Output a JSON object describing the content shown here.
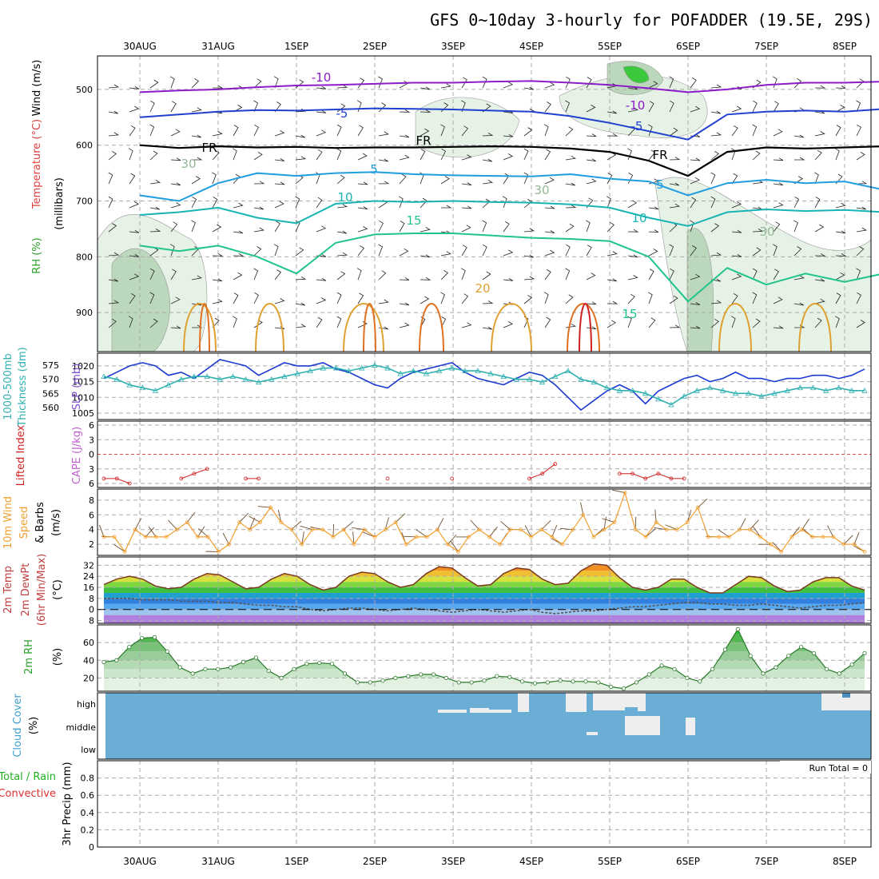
{
  "title": "GFS 0~10day 3-hourly for POFADDER (19.5E, 29S)",
  "dates": [
    "30AUG",
    "31AUG",
    "1SEP",
    "2SEP",
    "3SEP",
    "4SEP",
    "5SEP",
    "6SEP",
    "7SEP",
    "8SEP"
  ],
  "colors": {
    "rh_light": "#e6f2e6",
    "rh_mid": "#bcd8bc",
    "rh_dark": "#94b894",
    "rh_green": "#3cc83c",
    "temp_neg10": "#8c1cc8",
    "temp_neg5": "#2040d0",
    "temp_fr": "#000000",
    "temp_5": "#1e9ee0",
    "temp_10": "#18b4b4",
    "temp_15": "#20c48c",
    "temp_20": "#e0a030",
    "temp_25": "#e07020",
    "temp_30": "#d02020",
    "slp": "#1a3ad0",
    "thickness": "#30b0b0",
    "lifted": "#d02020",
    "wind10m": "#f0a030",
    "barb": "#6e5030",
    "dewpt": "#666666",
    "cloud": "#6aaed6",
    "cloud_clear": "#eeeeee"
  },
  "chart_data": [
    {
      "type": "heatmap",
      "name": "Temperature / Wind / RH vertical profile",
      "ylabel": "(millibars)",
      "ylabel_parts": [
        "RH (%)",
        "Temperature (°C)",
        "Wind (m/s)"
      ],
      "y_ticks": [
        500,
        600,
        700,
        800,
        900
      ],
      "ylim": [
        440,
        970
      ],
      "y_scale": "pressure (inverted)",
      "contour_labels": [
        {
          "text": "-10",
          "color": "temp_neg10"
        },
        {
          "text": "-10",
          "color": "temp_neg10"
        },
        {
          "text": "-5",
          "color": "temp_neg5"
        },
        {
          "text": "-5",
          "color": "temp_neg5"
        },
        {
          "text": "FR",
          "color": "temp_fr"
        },
        {
          "text": "FR",
          "color": "temp_fr"
        },
        {
          "text": "FR",
          "color": "temp_fr"
        },
        {
          "text": "5",
          "color": "temp_5"
        },
        {
          "text": "5",
          "color": "temp_5"
        },
        {
          "text": "10",
          "color": "temp_10"
        },
        {
          "text": "10",
          "color": "temp_10"
        },
        {
          "text": "15",
          "color": "temp_15"
        },
        {
          "text": "15",
          "color": "temp_15"
        },
        {
          "text": "20",
          "color": "temp_20"
        },
        {
          "text": "30",
          "color": "rh_dark"
        },
        {
          "text": "30",
          "color": "rh_dark"
        },
        {
          "text": "30",
          "color": "rh_dark"
        }
      ],
      "isotherms": [
        {
          "name": "-10",
          "color": "temp_neg10",
          "t": [
            0,
            0.5,
            1,
            1.5,
            2,
            2.5,
            3,
            3.5,
            4,
            4.5,
            5,
            5.5,
            6,
            6.5,
            7,
            7.5,
            8,
            8.5,
            9,
            9.5
          ],
          "p": [
            505,
            502,
            500,
            496,
            493,
            492,
            490,
            488,
            488,
            486,
            485,
            488,
            492,
            498,
            505,
            500,
            492,
            488,
            488,
            486
          ]
        },
        {
          "name": "-5",
          "color": "temp_neg5",
          "t": [
            0,
            0.5,
            1,
            1.5,
            2,
            2.5,
            3,
            3.5,
            4,
            4.5,
            5,
            5.5,
            6,
            6.5,
            7,
            7.5,
            8,
            8.5,
            9,
            9.5
          ],
          "p": [
            550,
            545,
            540,
            537,
            538,
            536,
            534,
            535,
            536,
            538,
            540,
            548,
            560,
            575,
            590,
            545,
            540,
            538,
            540,
            535
          ]
        },
        {
          "name": "FR",
          "color": "temp_fr",
          "t": [
            0,
            0.5,
            1,
            1.5,
            2,
            2.5,
            3,
            3.5,
            4,
            4.5,
            5,
            5.5,
            6,
            6.5,
            7,
            7.5,
            8,
            8.5,
            9,
            9.5
          ],
          "p": [
            600,
            605,
            602,
            604,
            603,
            605,
            604,
            604,
            603,
            602,
            603,
            606,
            612,
            628,
            655,
            612,
            604,
            606,
            604,
            602
          ]
        },
        {
          "name": "5",
          "color": "temp_5",
          "t": [
            0,
            0.5,
            1,
            1.5,
            2,
            2.5,
            3,
            3.5,
            4,
            4.5,
            5,
            5.5,
            6,
            6.5,
            7,
            7.5,
            8,
            8.5,
            9,
            9.5
          ],
          "p": [
            690,
            700,
            668,
            650,
            655,
            650,
            648,
            652,
            654,
            655,
            656,
            652,
            660,
            665,
            690,
            668,
            662,
            668,
            665,
            680
          ]
        },
        {
          "name": "10",
          "color": "temp_10",
          "t": [
            0,
            0.5,
            1,
            1.5,
            2,
            2.5,
            3,
            3.5,
            4,
            4.5,
            5,
            5.5,
            6,
            6.5,
            7,
            7.5,
            8,
            8.5,
            9,
            9.5
          ],
          "p": [
            725,
            720,
            712,
            730,
            740,
            705,
            700,
            702,
            700,
            702,
            703,
            706,
            712,
            730,
            745,
            720,
            715,
            718,
            716,
            720
          ]
        },
        {
          "name": "15",
          "color": "temp_15",
          "t": [
            0,
            0.5,
            1,
            1.5,
            2,
            2.5,
            3,
            3.5,
            4,
            4.5,
            5,
            5.5,
            6,
            6.5,
            7,
            7.5,
            8,
            8.5,
            9,
            9.5
          ],
          "p": [
            780,
            790,
            780,
            800,
            830,
            775,
            760,
            758,
            758,
            762,
            766,
            768,
            772,
            800,
            880,
            820,
            850,
            830,
            845,
            830
          ]
        }
      ]
    },
    {
      "type": "line",
      "name": "SLP and thickness",
      "ylabel": [
        "1000-500mb",
        "Thickness (dm)",
        "SLP (mb)"
      ],
      "left_ticks": [
        560,
        565,
        570,
        575
      ],
      "right_ticks": [
        1005,
        1010,
        1015,
        1020
      ],
      "series": [
        {
          "name": "SLP (mb)",
          "color": "slp",
          "axis": "right",
          "values": [
            1016,
            1018,
            1020,
            1021,
            1020,
            1017,
            1018,
            1016,
            1019,
            1022,
            1021,
            1020,
            1017,
            1019,
            1021,
            1020,
            1020,
            1021,
            1019,
            1018,
            1016,
            1014,
            1013,
            1016,
            1018,
            1019,
            1020,
            1021,
            1018,
            1016,
            1015,
            1014,
            1016,
            1018,
            1017,
            1014,
            1010,
            1006,
            1009,
            1012,
            1014,
            1012,
            1008,
            1012,
            1014,
            1016,
            1017,
            1015,
            1016,
            1018,
            1016,
            1016,
            1015,
            1016,
            1016,
            1017,
            1017,
            1016,
            1017,
            1019
          ]
        },
        {
          "name": "1000-500mb Thickness (dm)",
          "color": "thickness",
          "axis": "left",
          "marker": "triangle",
          "values": [
            571,
            570,
            568,
            567,
            566,
            568,
            570,
            571,
            571,
            570,
            571,
            570,
            569,
            570,
            571,
            572,
            573,
            574,
            574,
            573,
            574,
            575,
            574,
            572,
            573,
            572,
            573,
            574,
            573,
            573,
            572,
            571,
            570,
            570,
            569,
            571,
            573,
            570,
            569,
            567,
            566,
            566,
            565,
            563,
            561,
            564,
            566,
            567,
            566,
            565,
            565,
            564,
            565,
            566,
            567,
            567,
            566,
            567,
            566,
            566
          ]
        }
      ]
    },
    {
      "type": "line",
      "name": "Lifted Index and CAPE",
      "ylabel": [
        "Lifted Index",
        "CAPE (J/kg)"
      ],
      "left_ticks": [
        -6,
        -3,
        0,
        3,
        6
      ],
      "ylim": [
        -6,
        6
      ],
      "series": [
        {
          "name": "Lifted Index",
          "color": "lifted",
          "values": [
            5,
            5,
            6,
            null,
            null,
            null,
            5,
            4,
            3,
            null,
            null,
            5,
            5,
            null,
            null,
            null,
            null,
            null,
            null,
            null,
            null,
            null,
            5,
            null,
            null,
            null,
            null,
            5,
            null,
            null,
            null,
            null,
            null,
            5,
            4,
            2,
            null,
            null,
            null,
            null,
            4,
            4,
            5,
            4,
            5,
            5,
            null,
            null,
            null,
            null,
            null,
            null,
            null,
            null,
            null,
            null,
            null,
            null,
            null,
            null
          ]
        }
      ]
    },
    {
      "type": "line",
      "name": "10m Wind Speed & Barbs",
      "ylabel": [
        "10m Wind",
        "Speed",
        "& Barbs",
        "(m/s)"
      ],
      "left_ticks": [
        2,
        4,
        6,
        8
      ],
      "ylim": [
        0.5,
        9.5
      ],
      "series": [
        {
          "name": "10m Wind Speed (m/s)",
          "color": "wind10m",
          "marker": "circle",
          "values": [
            3,
            3,
            1,
            4,
            3,
            3,
            3,
            4,
            5,
            3,
            3,
            1,
            2,
            5,
            4,
            5,
            7,
            5,
            4,
            2,
            4,
            4,
            3,
            4,
            2,
            4,
            3,
            4,
            5,
            2,
            3,
            3,
            4,
            2,
            1,
            3,
            4,
            3,
            2,
            4,
            4,
            3,
            4,
            3,
            2,
            4,
            6,
            3,
            4,
            5,
            9,
            4,
            3,
            5,
            4,
            4,
            5,
            7,
            3,
            3,
            3,
            4,
            4,
            3,
            2,
            1,
            3,
            4,
            3,
            3,
            3,
            2,
            2,
            1
          ]
        }
      ]
    },
    {
      "type": "area",
      "name": "2m Temp / 2m DewPt",
      "ylabel": [
        "2m Temp",
        "2m DewPt",
        "(6hr Min/Max)",
        "(°C)"
      ],
      "left_ticks": [
        -8,
        0,
        8,
        16,
        24,
        32
      ],
      "ylim": [
        -10,
        38
      ],
      "series": [
        {
          "name": "2m Temp (°C)",
          "values": [
            18,
            22,
            24,
            22,
            17,
            15,
            16,
            22,
            26,
            25,
            20,
            15,
            16,
            22,
            26,
            24,
            18,
            14,
            16,
            24,
            27,
            26,
            20,
            16,
            18,
            26,
            31,
            30,
            23,
            17,
            18,
            26,
            30,
            29,
            22,
            18,
            19,
            28,
            33,
            32,
            23,
            16,
            14,
            16,
            22,
            22,
            16,
            12,
            12,
            18,
            24,
            23,
            17,
            13,
            14,
            20,
            23,
            23,
            17,
            14
          ]
        },
        {
          "name": "2m DewPt (°C)",
          "color": "dewpt",
          "values": [
            8,
            8,
            8,
            7,
            7,
            7,
            6,
            6,
            6,
            5,
            5,
            4,
            3,
            3,
            2,
            2,
            0,
            -1,
            0,
            1,
            1,
            0,
            -1,
            0,
            1,
            0,
            -1,
            -2,
            -1,
            0,
            -1,
            -2,
            -1,
            0,
            -2,
            -3,
            -2,
            -1,
            -1,
            0,
            1,
            2,
            2,
            3,
            4,
            5,
            5,
            4,
            4,
            3,
            3,
            4,
            3,
            2,
            1,
            2,
            3,
            3,
            4,
            5
          ]
        }
      ]
    },
    {
      "type": "area",
      "name": "2m RH",
      "ylabel": [
        "2m RH",
        "(%)"
      ],
      "left_ticks": [
        20,
        40,
        60
      ],
      "ylim": [
        5,
        80
      ],
      "series": [
        {
          "name": "2m RH (%)",
          "values": [
            38,
            40,
            55,
            65,
            66,
            50,
            32,
            25,
            30,
            30,
            32,
            38,
            43,
            28,
            20,
            30,
            36,
            37,
            36,
            25,
            15,
            15,
            17,
            20,
            22,
            24,
            24,
            20,
            15,
            15,
            17,
            22,
            21,
            16,
            14,
            15,
            17,
            16,
            16,
            15,
            10,
            8,
            15,
            24,
            34,
            30,
            20,
            16,
            30,
            52,
            75,
            45,
            25,
            32,
            45,
            55,
            48,
            30,
            25,
            35,
            48
          ]
        }
      ]
    },
    {
      "type": "heatmap",
      "name": "Cloud Cover",
      "ylabel": [
        "Cloud Cover",
        "(%)"
      ],
      "level_labels": [
        "high",
        "middle",
        "low"
      ]
    },
    {
      "type": "bar",
      "name": "3hr Precip",
      "ylabel": [
        "Total / Rain",
        "Convective",
        "3hr Precip (mm)"
      ],
      "left_ticks": [
        0,
        0.2,
        0.4,
        0.6,
        0.8
      ],
      "ylim": [
        0,
        1.0
      ],
      "run_total": "Run Total = 0",
      "values": []
    }
  ]
}
